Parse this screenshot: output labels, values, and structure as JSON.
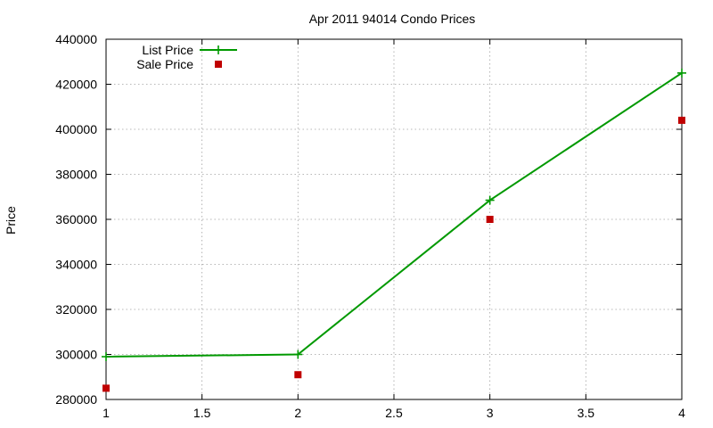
{
  "chart_data": {
    "type": "line",
    "title": "Apr 2011 94014 Condo Prices",
    "xlabel": "",
    "ylabel": "Price",
    "xlim": [
      1,
      4
    ],
    "ylim": [
      280000,
      440000
    ],
    "x_ticks": [
      "1",
      "1.5",
      "2",
      "2.5",
      "3",
      "3.5",
      "4"
    ],
    "y_ticks": [
      "280000",
      "300000",
      "320000",
      "340000",
      "360000",
      "380000",
      "400000",
      "420000",
      "440000"
    ],
    "grid": true,
    "legend_position": "top-left",
    "series": [
      {
        "name": "List Price",
        "style": "linespoints",
        "marker": "plus",
        "color": "#009900",
        "x": [
          1,
          2,
          3,
          4
        ],
        "y": [
          299000,
          300000,
          368500,
          425000
        ]
      },
      {
        "name": "Sale Price",
        "style": "points",
        "marker": "square",
        "color": "#c00000",
        "x": [
          1,
          2,
          3,
          4
        ],
        "y": [
          285000,
          291000,
          360000,
          404000
        ]
      }
    ]
  }
}
